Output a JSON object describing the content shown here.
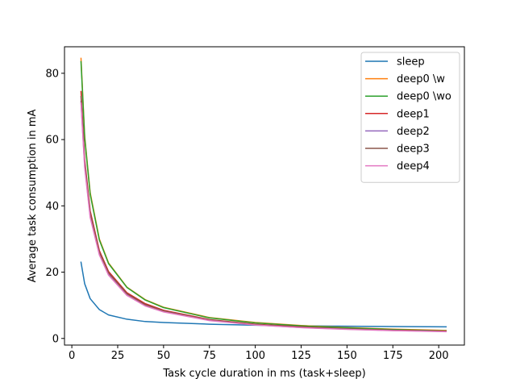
{
  "chart_data": {
    "type": "line",
    "title": "",
    "xlabel": "Task cycle duration in ms (task+sleep)",
    "ylabel": "Average task consumption in mA",
    "xlim": [
      -4,
      214
    ],
    "ylim": [
      -2,
      88
    ],
    "xticks": [
      0,
      25,
      50,
      75,
      100,
      125,
      150,
      175,
      200
    ],
    "yticks": [
      0,
      20,
      40,
      60,
      80
    ],
    "grid": false,
    "legend_position": "top-right",
    "x": [
      5,
      7,
      10,
      15,
      20,
      30,
      40,
      50,
      75,
      100,
      125,
      150,
      175,
      204
    ],
    "series": [
      {
        "name": "sleep",
        "color": "#1f77b4",
        "values": [
          23.0,
          16.5,
          12.0,
          8.7,
          7.1,
          5.8,
          5.1,
          4.8,
          4.3,
          4.0,
          3.8,
          3.7,
          3.6,
          3.5
        ]
      },
      {
        "name": "deep0 \\w",
        "color": "#ff7f0e",
        "values": [
          84.5,
          61.0,
          44.0,
          30.0,
          22.8,
          15.5,
          11.7,
          9.4,
          6.3,
          4.8,
          3.9,
          3.3,
          2.8,
          2.4
        ]
      },
      {
        "name": "deep0 \\wo",
        "color": "#2ca02c",
        "values": [
          83.5,
          60.5,
          43.5,
          29.7,
          22.6,
          15.4,
          11.6,
          9.3,
          6.2,
          4.7,
          3.8,
          3.2,
          2.7,
          2.3
        ]
      },
      {
        "name": "deep1",
        "color": "#d62728",
        "values": [
          74.5,
          54.0,
          38.5,
          26.5,
          20.2,
          13.8,
          10.5,
          8.5,
          5.7,
          4.3,
          3.5,
          2.9,
          2.5,
          2.2
        ]
      },
      {
        "name": "deep2",
        "color": "#9467bd",
        "values": [
          71.5,
          52.0,
          37.0,
          25.5,
          19.4,
          13.2,
          10.0,
          8.1,
          5.5,
          4.1,
          3.3,
          2.8,
          2.4,
          2.1
        ]
      },
      {
        "name": "deep3",
        "color": "#8c564b",
        "values": [
          73.0,
          53.0,
          37.8,
          26.0,
          19.8,
          13.5,
          10.2,
          8.3,
          5.6,
          4.2,
          3.4,
          2.85,
          2.45,
          2.15
        ]
      },
      {
        "name": "deep4",
        "color": "#e377c2",
        "values": [
          71.0,
          51.5,
          36.5,
          25.2,
          19.1,
          13.0,
          9.8,
          8.0,
          5.4,
          4.05,
          3.25,
          2.75,
          2.35,
          2.05
        ]
      }
    ]
  }
}
